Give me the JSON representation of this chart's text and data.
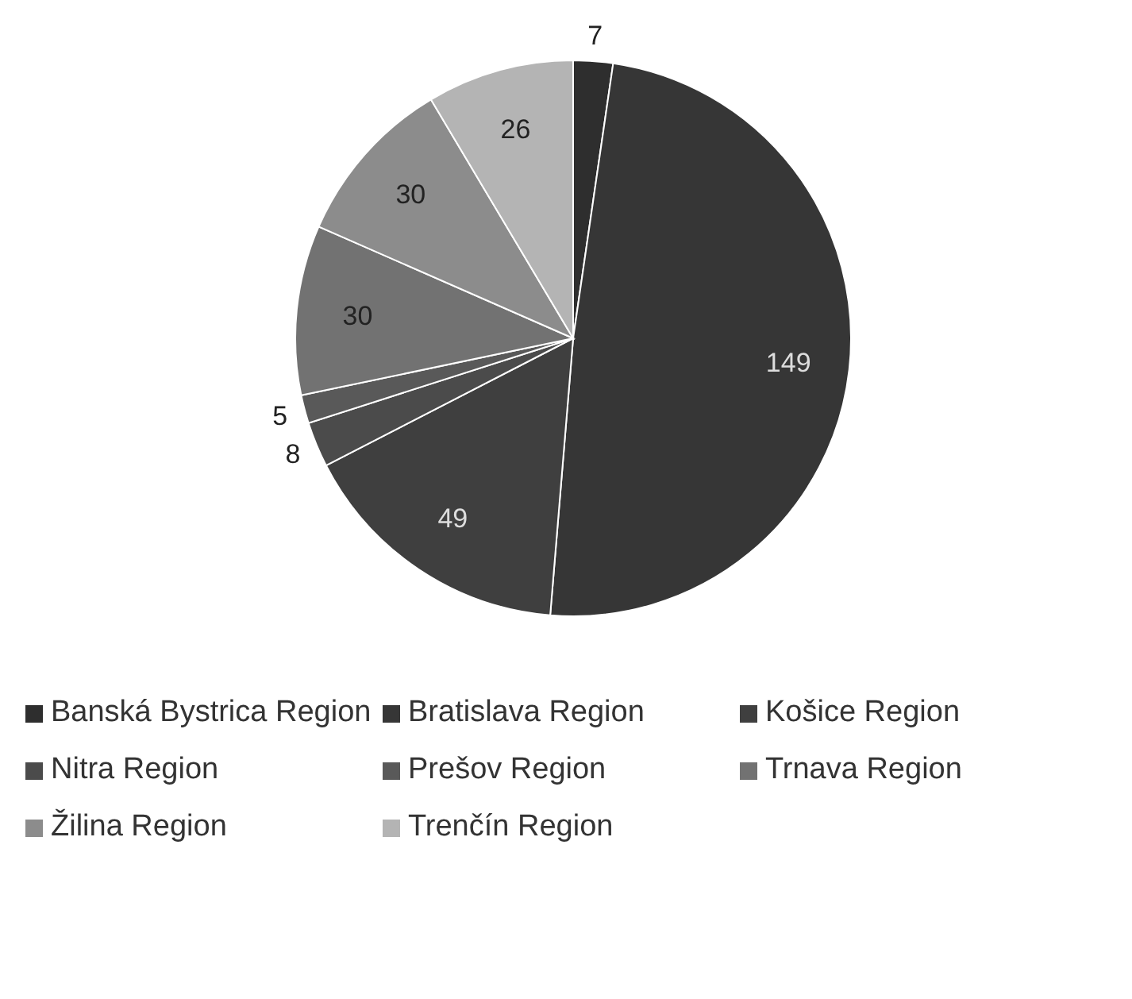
{
  "chart_data": {
    "type": "pie",
    "categories": [
      "Banská Bystrica Region",
      "Bratislava Region",
      "Košice Region",
      "Nitra Region",
      "Prešov Region",
      "Trnava Region",
      "Žilina Region",
      "Trenčín Region"
    ],
    "values": [
      7,
      149,
      49,
      8,
      5,
      30,
      30,
      26
    ],
    "colors": [
      "#2e2e2e",
      "#363636",
      "#3f3f3f",
      "#4b4b4b",
      "#595959",
      "#727272",
      "#8c8c8c",
      "#b4b4b4"
    ],
    "data_labels": true,
    "legend": "bottom"
  }
}
